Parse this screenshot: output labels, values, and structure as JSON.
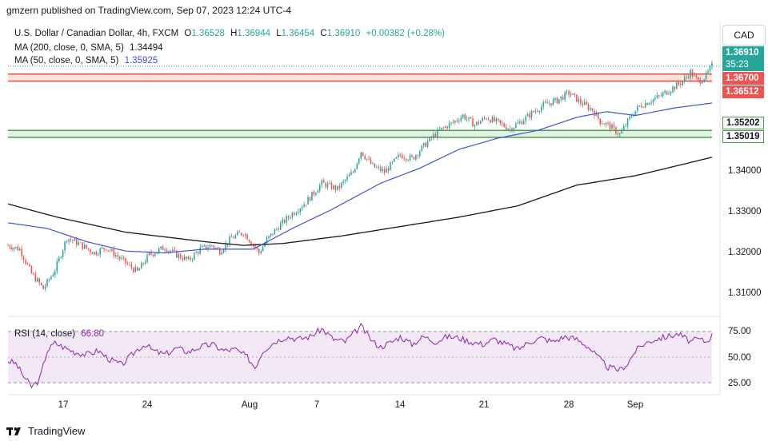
{
  "header": {
    "published_by": "gmzern published on TradingView.com, Sep 07, 2023 12:24 UTC-4"
  },
  "legend": {
    "symbol": "U.S. Dollar / Canadian Dollar, 4h, FXCM",
    "open_label": "O",
    "open": "1.36528",
    "high_label": "H",
    "high": "1.36944",
    "low_label": "L",
    "low": "1.36454",
    "close_label": "C",
    "close": "1.36910",
    "change": "+0.00382 (+0.28%)",
    "ma200_label": "MA (200, close, 0, SMA, 5)",
    "ma200_value": "1.34494",
    "ma50_label": "MA (50, close, 0, SMA, 5)",
    "ma50_value": "1.35925",
    "rsi_label": "RSI (14, close)",
    "rsi_value": "66.80"
  },
  "currency_button": "CAD",
  "price_tags": {
    "last": "1.36910",
    "countdown": "35:23",
    "resist_top": "1.36700",
    "resist_bottom": "1.36512",
    "support_top": "1.35202",
    "support_bottom": "1.35019"
  },
  "colors": {
    "up": "#26a69a",
    "down": "#ef5350",
    "ma200": "#131722",
    "ma50": "#3f51d8",
    "rsi": "#8e24aa",
    "resist": "#f44336",
    "support": "#43a047"
  },
  "footer": {
    "brand": "TradingView"
  },
  "chart_data": {
    "type": "candlestick",
    "price_axis": {
      "ticks": [
        "1.31000",
        "1.32000",
        "1.33000",
        "1.34000"
      ],
      "range": [
        1.3035,
        1.3735
      ]
    },
    "time_axis": {
      "ticks": [
        "17",
        "24",
        "Aug",
        "7",
        "14",
        "21",
        "28",
        "Sep"
      ]
    },
    "zones": [
      {
        "name": "resistance",
        "from": 1.36512,
        "to": 1.367
      },
      {
        "name": "support",
        "from": 1.35019,
        "to": 1.35202
      }
    ],
    "close_path": [
      [
        0,
        1.3215
      ],
      [
        6,
        1.3205
      ],
      [
        12,
        1.314
      ],
      [
        18,
        1.31
      ],
      [
        24,
        1.315
      ],
      [
        30,
        1.3235
      ],
      [
        36,
        1.322
      ],
      [
        44,
        1.3195
      ],
      [
        50,
        1.321
      ],
      [
        56,
        1.3185
      ],
      [
        62,
        1.316
      ],
      [
        66,
        1.3145
      ],
      [
        72,
        1.319
      ],
      [
        80,
        1.321
      ],
      [
        86,
        1.319
      ],
      [
        92,
        1.3175
      ],
      [
        98,
        1.3205
      ],
      [
        104,
        1.3215
      ],
      [
        108,
        1.32
      ],
      [
        114,
        1.3235
      ],
      [
        120,
        1.325
      ],
      [
        124,
        1.3225
      ],
      [
        128,
        1.3195
      ],
      [
        132,
        1.323
      ],
      [
        138,
        1.3265
      ],
      [
        144,
        1.3295
      ],
      [
        152,
        1.333
      ],
      [
        160,
        1.338
      ],
      [
        168,
        1.3365
      ],
      [
        176,
        1.341
      ],
      [
        180,
        1.3465
      ],
      [
        186,
        1.3425
      ],
      [
        192,
        1.341
      ],
      [
        200,
        1.3455
      ],
      [
        206,
        1.3445
      ],
      [
        214,
        1.349
      ],
      [
        220,
        1.352
      ],
      [
        228,
        1.3545
      ],
      [
        232,
        1.356
      ],
      [
        238,
        1.3535
      ],
      [
        244,
        1.3555
      ],
      [
        250,
        1.354
      ],
      [
        256,
        1.3525
      ],
      [
        262,
        1.3545
      ],
      [
        268,
        1.357
      ],
      [
        274,
        1.359
      ],
      [
        280,
        1.36
      ],
      [
        286,
        1.362
      ],
      [
        292,
        1.3595
      ],
      [
        298,
        1.3575
      ],
      [
        302,
        1.3545
      ],
      [
        306,
        1.3535
      ],
      [
        312,
        1.351
      ],
      [
        318,
        1.356
      ],
      [
        322,
        1.3585
      ],
      [
        326,
        1.3595
      ],
      [
        332,
        1.361
      ],
      [
        338,
        1.363
      ],
      [
        344,
        1.365
      ],
      [
        348,
        1.3675
      ],
      [
        352,
        1.365
      ],
      [
        356,
        1.3665
      ],
      [
        359,
        1.3691
      ]
    ],
    "ma200": [
      [
        0,
        1.3325
      ],
      [
        25,
        1.329
      ],
      [
        60,
        1.325
      ],
      [
        100,
        1.3225
      ],
      [
        120,
        1.3215
      ],
      [
        140,
        1.322
      ],
      [
        170,
        1.324
      ],
      [
        200,
        1.3265
      ],
      [
        230,
        1.329
      ],
      [
        260,
        1.332
      ],
      [
        290,
        1.3375
      ],
      [
        320,
        1.34
      ],
      [
        340,
        1.3425
      ],
      [
        359,
        1.3449
      ]
    ],
    "ma50": [
      [
        0,
        1.3275
      ],
      [
        20,
        1.326
      ],
      [
        40,
        1.3225
      ],
      [
        60,
        1.32
      ],
      [
        80,
        1.3195
      ],
      [
        100,
        1.3205
      ],
      [
        125,
        1.3205
      ],
      [
        145,
        1.326
      ],
      [
        165,
        1.331
      ],
      [
        190,
        1.338
      ],
      [
        210,
        1.342
      ],
      [
        230,
        1.347
      ],
      [
        250,
        1.35
      ],
      [
        270,
        1.352
      ],
      [
        290,
        1.3555
      ],
      [
        305,
        1.357
      ],
      [
        320,
        1.356
      ],
      [
        340,
        1.358
      ],
      [
        359,
        1.3593
      ]
    ],
    "rsi": {
      "ticks": [
        "75.00",
        "50.00",
        "25.00"
      ],
      "levels": [
        70,
        30
      ],
      "range": [
        22,
        78
      ],
      "values": [
        [
          0,
          47
        ],
        [
          4,
          45
        ],
        [
          8,
          35
        ],
        [
          12,
          27
        ],
        [
          16,
          32
        ],
        [
          20,
          55
        ],
        [
          24,
          61
        ],
        [
          28,
          58
        ],
        [
          34,
          54
        ],
        [
          40,
          52
        ],
        [
          46,
          55
        ],
        [
          52,
          48
        ],
        [
          58,
          44
        ],
        [
          62,
          50
        ],
        [
          66,
          56
        ],
        [
          70,
          60
        ],
        [
          74,
          55
        ],
        [
          80,
          52
        ],
        [
          86,
          57
        ],
        [
          92,
          54
        ],
        [
          98,
          58
        ],
        [
          104,
          60
        ],
        [
          110,
          55
        ],
        [
          116,
          56
        ],
        [
          122,
          50
        ],
        [
          126,
          42
        ],
        [
          130,
          55
        ],
        [
          136,
          62
        ],
        [
          142,
          66
        ],
        [
          148,
          64
        ],
        [
          154,
          66
        ],
        [
          160,
          72
        ],
        [
          166,
          64
        ],
        [
          172,
          62
        ],
        [
          176,
          68
        ],
        [
          180,
          74
        ],
        [
          186,
          62
        ],
        [
          190,
          58
        ],
        [
          196,
          62
        ],
        [
          200,
          66
        ],
        [
          206,
          60
        ],
        [
          212,
          66
        ],
        [
          218,
          62
        ],
        [
          224,
          66
        ],
        [
          230,
          65
        ],
        [
          236,
          62
        ],
        [
          242,
          60
        ],
        [
          248,
          64
        ],
        [
          254,
          60
        ],
        [
          260,
          56
        ],
        [
          266,
          62
        ],
        [
          272,
          65
        ],
        [
          278,
          62
        ],
        [
          284,
          66
        ],
        [
          290,
          64
        ],
        [
          296,
          58
        ],
        [
          302,
          48
        ],
        [
          306,
          42
        ],
        [
          312,
          40
        ],
        [
          316,
          45
        ],
        [
          320,
          55
        ],
        [
          324,
          60
        ],
        [
          330,
          64
        ],
        [
          336,
          66
        ],
        [
          342,
          68
        ],
        [
          348,
          62
        ],
        [
          352,
          64
        ],
        [
          356,
          62
        ],
        [
          359,
          66.8
        ]
      ]
    }
  }
}
